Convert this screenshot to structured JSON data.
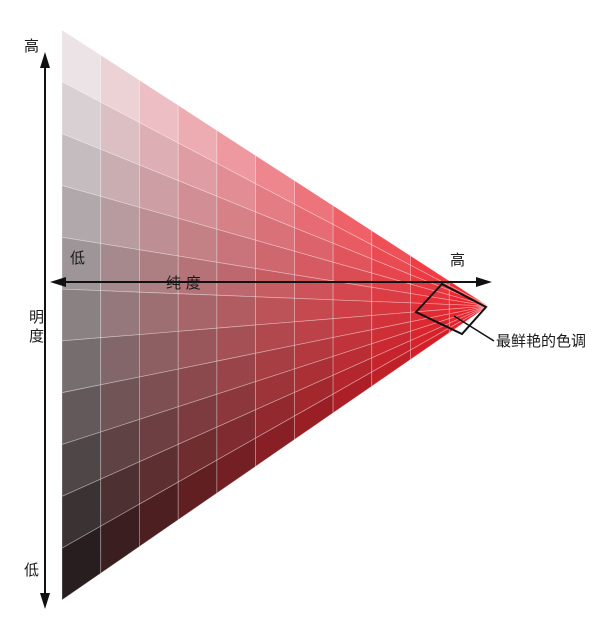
{
  "labels": {
    "lightness_high": "高",
    "lightness_low": "低",
    "lightness_axis": "明度",
    "saturation_low": "低",
    "saturation_axis": "纯 度",
    "saturation_high": "高",
    "vivid_color": "最鲜艳的色调"
  },
  "colors": {
    "white": "#f6f7fb",
    "black": "#141414",
    "pure_hue": "#f0202a",
    "grid_line": "#ffffff",
    "axis": "#111111"
  },
  "grid": {
    "rows": 11,
    "cols": 11
  }
}
